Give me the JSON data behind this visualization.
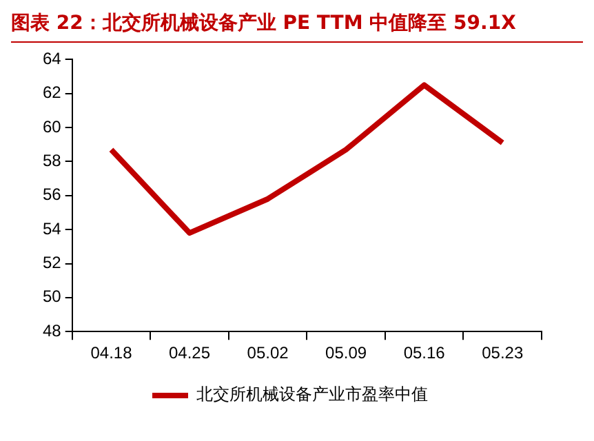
{
  "chart_data": {
    "type": "line",
    "title": "图表 22：北交所机械设备产业 PE TTM 中值降至 59.1X",
    "categories": [
      "04.18",
      "04.25",
      "05.02",
      "05.09",
      "05.16",
      "05.23"
    ],
    "series": [
      {
        "name": "北交所机械设备产业市盈率中值",
        "color": "#c00000",
        "values": [
          58.7,
          53.8,
          55.8,
          58.7,
          62.5,
          59.1
        ]
      }
    ],
    "ylim": [
      48,
      64
    ],
    "yticks": [
      48,
      50,
      52,
      54,
      56,
      58,
      60,
      62,
      64
    ],
    "grid": false,
    "legend": "bottom",
    "marker": "none",
    "line_style": "solid"
  }
}
